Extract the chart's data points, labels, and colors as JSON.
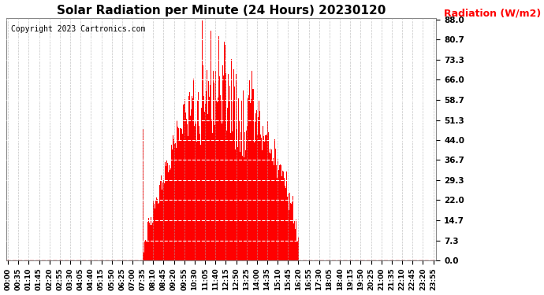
{
  "title": "Solar Radiation per Minute (24 Hours) 20230120",
  "ylabel": "Radiation (W/m2)",
  "copyright": "Copyright 2023 Cartronics.com",
  "bar_color": "#ff0000",
  "background_color": "#ffffff",
  "yticks": [
    0.0,
    7.3,
    14.7,
    22.0,
    29.3,
    36.7,
    44.0,
    51.3,
    58.7,
    66.0,
    73.3,
    80.7,
    88.0
  ],
  "ymin": 0.0,
  "ymax": 88.0,
  "total_minutes": 1440,
  "xtick_interval": 35,
  "dashed_line_color": "#ffffff",
  "baseline_color": "#ff0000",
  "vgrid_color": "#aaaaaa",
  "sunrise_minute": 455,
  "sunset_minute": 980
}
